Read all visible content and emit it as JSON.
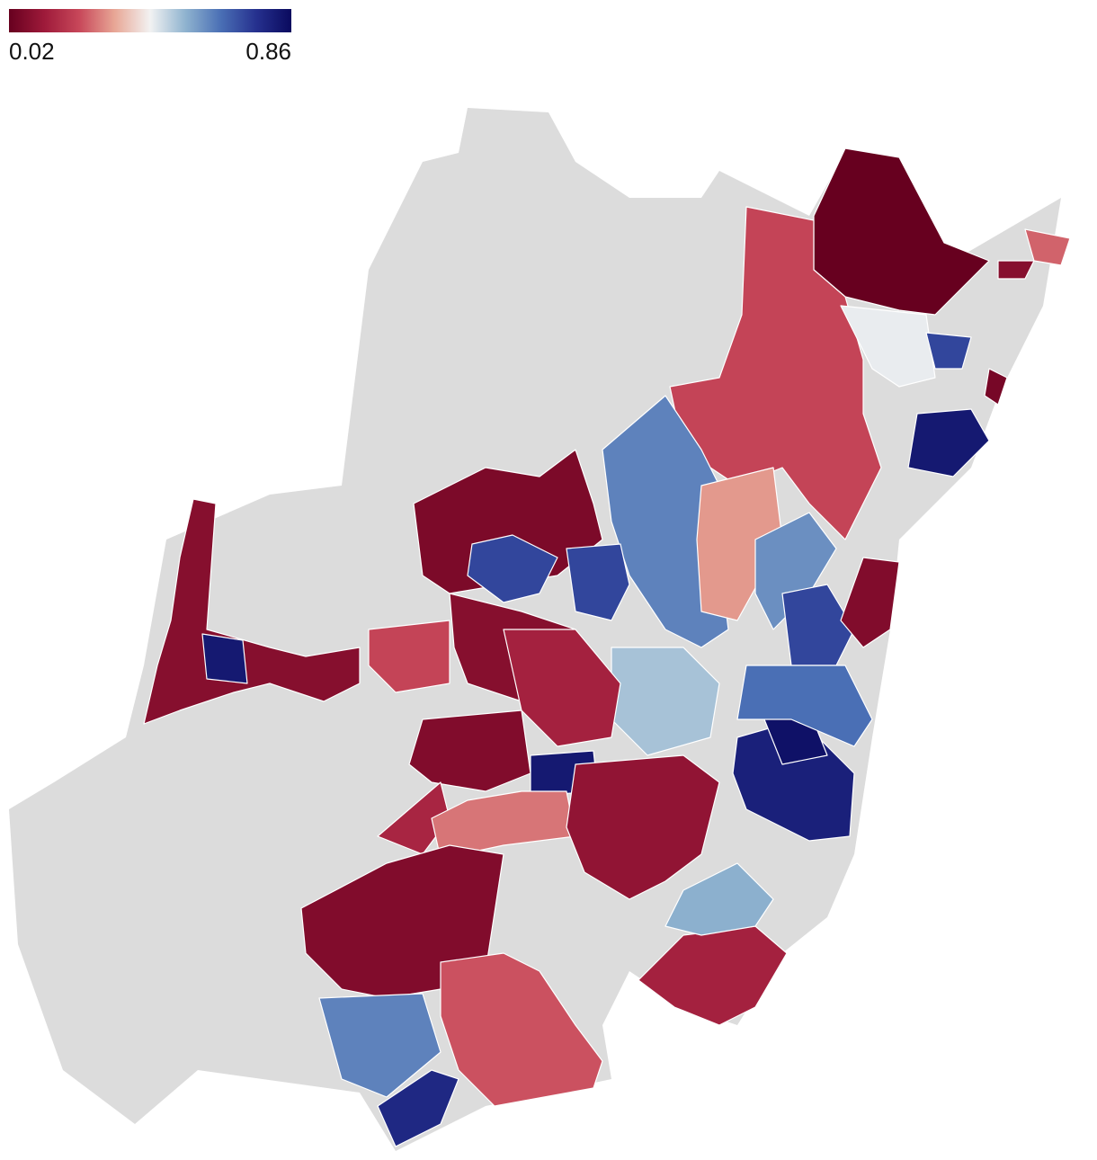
{
  "map": {
    "legend": {
      "min": 0.02,
      "max": 0.86,
      "colors": [
        "#67001f",
        "#9e1a3a",
        "#c8485a",
        "#e8a796",
        "#f2f2f2",
        "#8fb3cf",
        "#4a6fb5",
        "#26318f",
        "#0a0a5e"
      ]
    },
    "regions": [
      0.02,
      0.22,
      0.45,
      0.62,
      0.32,
      0.6,
      0.06,
      0.72,
      0.72,
      0.08,
      0.82,
      0.22,
      0.08,
      0.07,
      0.82,
      0.15,
      0.28,
      0.07,
      0.62,
      0.78,
      0.24,
      0.14,
      0.1,
      0.8,
      0.84,
      0.72,
      0.65,
      0.52,
      0.14,
      0.72,
      0.82,
      0.55,
      0.05,
      0.07,
      0.26,
      0.08
    ]
  }
}
